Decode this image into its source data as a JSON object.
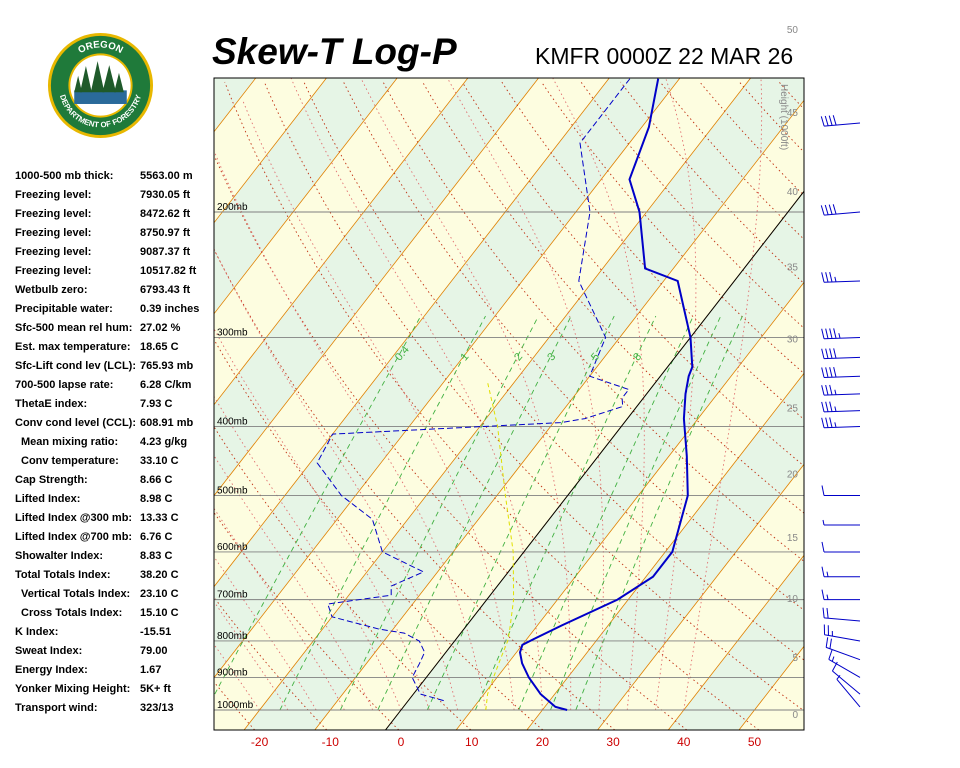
{
  "header": {
    "title": "Skew-T Log-P",
    "station_time": "KMFR 0000Z 22 MAR 26"
  },
  "logo": {
    "top_text": "OREGON",
    "bottom_text": "DEPARTMENT OF FORESTRY",
    "colors": {
      "ring": "#1f7a3a",
      "border": "#e8b800"
    }
  },
  "indices": [
    {
      "label": "1000-500 mb thick:",
      "value": "5563.00 m",
      "indent": false
    },
    {
      "label": "Freezing level:",
      "value": "7930.05 ft",
      "indent": false
    },
    {
      "label": "Freezing level:",
      "value": "8472.62 ft",
      "indent": false
    },
    {
      "label": "Freezing level:",
      "value": "8750.97 ft",
      "indent": false
    },
    {
      "label": "Freezing level:",
      "value": "9087.37 ft",
      "indent": false
    },
    {
      "label": "Freezing level:",
      "value": "10517.82 ft",
      "indent": false
    },
    {
      "label": "Wetbulb zero:",
      "value": "6793.43 ft",
      "indent": false
    },
    {
      "label": "Precipitable water:",
      "value": "0.39 inches",
      "indent": false
    },
    {
      "label": "Sfc-500 mean rel hum:",
      "value": "27.02 %",
      "indent": false
    },
    {
      "label": "Est. max temperature:",
      "value": "18.65 C",
      "indent": false
    },
    {
      "label": "Sfc-Lift cond lev (LCL):",
      "value": "765.93 mb",
      "indent": false
    },
    {
      "label": "700-500 lapse rate:",
      "value": "6.28 C/km",
      "indent": false
    },
    {
      "label": "ThetaE index:",
      "value": "7.93 C",
      "indent": false
    },
    {
      "label": "Conv cond level (CCL):",
      "value": "608.91 mb",
      "indent": false
    },
    {
      "label": "Mean mixing ratio:",
      "value": "4.23 g/kg",
      "indent": true
    },
    {
      "label": "Conv temperature:",
      "value": "33.10 C",
      "indent": true
    },
    {
      "label": "Cap Strength:",
      "value": "8.66 C",
      "indent": false
    },
    {
      "label": "Lifted Index:",
      "value": "8.98 C",
      "indent": false
    },
    {
      "label": "Lifted Index @300 mb:",
      "value": "13.33 C",
      "indent": false
    },
    {
      "label": "Lifted Index @700 mb:",
      "value": "6.76 C",
      "indent": false
    },
    {
      "label": "Showalter Index:",
      "value": "8.83 C",
      "indent": false
    },
    {
      "label": "Total Totals Index:",
      "value": "38.20 C",
      "indent": false
    },
    {
      "label": "Vertical Totals Index:",
      "value": "23.10 C",
      "indent": true
    },
    {
      "label": "Cross Totals Index:",
      "value": "15.10 C",
      "indent": true
    },
    {
      "label": "K Index:",
      "value": "-15.51",
      "indent": false
    },
    {
      "label": "Sweat Index:",
      "value": "79.00",
      "indent": false
    },
    {
      "label": "Energy Index:",
      "value": "1.67",
      "indent": false
    },
    {
      "label": "Yonker Mixing Height:",
      "value": "5K+ ft",
      "indent": false
    },
    {
      "label": "Transport wind:",
      "value": "323/13",
      "indent": false
    }
  ],
  "chart_data": {
    "type": "line",
    "title": "Skew-T Log-P",
    "x_axis": {
      "ticks": [
        -20,
        -10,
        0,
        10,
        20,
        30,
        40,
        50
      ],
      "range": [
        -27.5,
        57
      ]
    },
    "pressure_levels": [
      {
        "p": 200,
        "label": "200mb"
      },
      {
        "p": 300,
        "label": "300mb"
      },
      {
        "p": 400,
        "label": "400mb"
      },
      {
        "p": 500,
        "label": "500mb"
      },
      {
        "p": 600,
        "label": "600mb"
      },
      {
        "p": 700,
        "label": "700mb"
      },
      {
        "p": 800,
        "label": "800mb"
      },
      {
        "p": 900,
        "label": "900mb"
      },
      {
        "p": 1000,
        "label": "1000mb"
      }
    ],
    "height_axis": {
      "title": "Height (1000ft)",
      "ticks": [
        "0",
        "5",
        "10",
        "15",
        "20",
        "25",
        "30",
        "35",
        "40",
        "45",
        "50"
      ]
    },
    "mixing_ratio_labels": [
      "0.4",
      "1",
      "2",
      "3",
      "5",
      "8"
    ],
    "series": [
      {
        "kind": "temperature",
        "color": "#0000c8",
        "points": [
          [
            23.5,
            1000
          ],
          [
            21.5,
            990
          ],
          [
            18,
            950
          ],
          [
            14.5,
            900
          ],
          [
            12,
            860
          ],
          [
            10.5,
            830
          ],
          [
            10,
            810
          ],
          [
            11,
            795
          ],
          [
            13.5,
            760
          ],
          [
            18.5,
            700
          ],
          [
            21,
            650
          ],
          [
            21,
            600
          ],
          [
            17,
            500
          ],
          [
            12.5,
            440
          ],
          [
            8,
            390
          ],
          [
            5.5,
            360
          ],
          [
            4,
            340
          ],
          [
            3.5,
            330
          ],
          [
            0,
            300
          ],
          [
            -8,
            250
          ],
          [
            -14,
            240
          ],
          [
            -21,
            200
          ],
          [
            -26,
            180
          ],
          [
            -29,
            152
          ],
          [
            -33,
            130
          ]
        ]
      },
      {
        "kind": "dewpoint",
        "color": "#0000c8",
        "points": [
          [
            5,
            970
          ],
          [
            1,
            950
          ],
          [
            -2,
            900
          ],
          [
            -2.5,
            860
          ],
          [
            -3,
            830
          ],
          [
            -5,
            800
          ],
          [
            -8,
            780
          ],
          [
            -12,
            770
          ],
          [
            -20,
            740
          ],
          [
            -22,
            710
          ],
          [
            -14,
            690
          ],
          [
            -15,
            670
          ],
          [
            -12,
            640
          ],
          [
            -20,
            600
          ],
          [
            -25,
            540
          ],
          [
            -32,
            500
          ],
          [
            -39,
            450
          ],
          [
            -40,
            410
          ],
          [
            -9,
            395
          ],
          [
            -6,
            390
          ],
          [
            -2,
            375
          ],
          [
            -3,
            365
          ],
          [
            -3,
            355
          ],
          [
            -10,
            340
          ],
          [
            -12,
            300
          ],
          [
            -22,
            250
          ],
          [
            -28,
            200
          ],
          [
            -37,
            160
          ],
          [
            -37,
            130
          ]
        ]
      },
      {
        "kind": "parcel",
        "color": "#e0e000",
        "points": [
          [
            12,
            1000
          ],
          [
            10.5,
            950
          ],
          [
            9.5,
            900
          ],
          [
            8.5,
            850
          ],
          [
            7.5,
            800
          ],
          [
            6.5,
            770
          ],
          [
            3.8,
            700
          ],
          [
            -1.5,
            600
          ],
          [
            -8.8,
            500
          ],
          [
            -17.5,
            400
          ],
          [
            -24,
            345
          ]
        ]
      }
    ],
    "winds": [
      {
        "p": 990,
        "dir": 320,
        "spd": 5
      },
      {
        "p": 950,
        "dir": 310,
        "spd": 10
      },
      {
        "p": 900,
        "dir": 300,
        "spd": 15
      },
      {
        "p": 850,
        "dir": 290,
        "spd": 20
      },
      {
        "p": 800,
        "dir": 280,
        "spd": 25
      },
      {
        "p": 750,
        "dir": 275,
        "spd": 20
      },
      {
        "p": 700,
        "dir": 270,
        "spd": 15
      },
      {
        "p": 650,
        "dir": 270,
        "spd": 15
      },
      {
        "p": 600,
        "dir": 270,
        "spd": 10
      },
      {
        "p": 550,
        "dir": 270,
        "spd": 5
      },
      {
        "p": 500,
        "dir": 270,
        "spd": 10
      },
      {
        "p": 400,
        "dir": 268,
        "spd": 35
      },
      {
        "p": 380,
        "dir": 268,
        "spd": 35
      },
      {
        "p": 360,
        "dir": 268,
        "spd": 35
      },
      {
        "p": 340,
        "dir": 268,
        "spd": 40
      },
      {
        "p": 320,
        "dir": 268,
        "spd": 40
      },
      {
        "p": 300,
        "dir": 268,
        "spd": 45
      },
      {
        "p": 250,
        "dir": 268,
        "spd": 35
      },
      {
        "p": 200,
        "dir": 265,
        "spd": 40
      },
      {
        "p": 150,
        "dir": 265,
        "spd": 40
      }
    ],
    "colors": {
      "isotherm": "#e08000",
      "dry_adiabat": "#c03010",
      "moist_adiabat": "#e07070",
      "mixing_ratio": "#40b040",
      "isobar": "#808080",
      "band_green": "#e6f5e6",
      "band_yellow": "#fdfde0",
      "x_labels": "#cc0000"
    }
  }
}
